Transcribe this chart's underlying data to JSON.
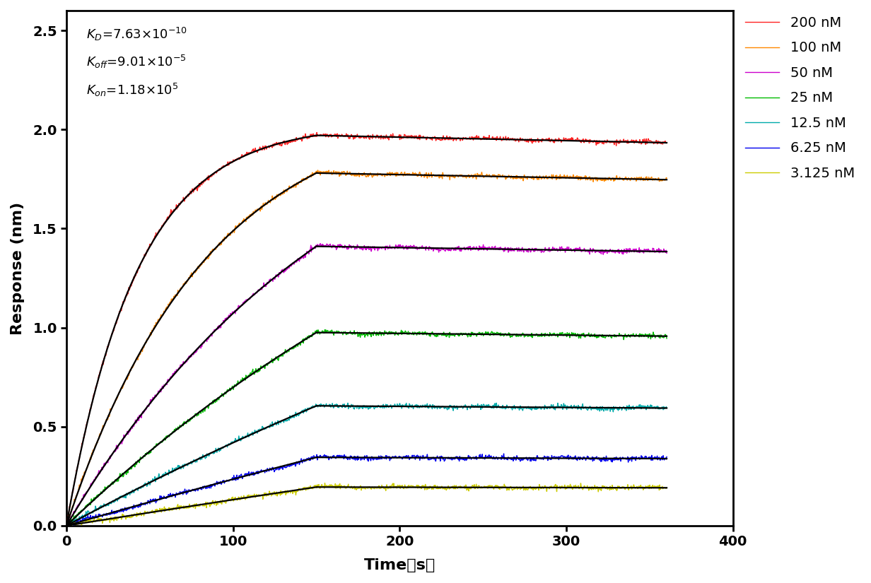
{
  "ylabel": "Response (nm)",
  "xlim": [
    0,
    400
  ],
  "ylim": [
    0.0,
    2.6
  ],
  "xticks": [
    0,
    100,
    200,
    300,
    400
  ],
  "yticks": [
    0.0,
    0.5,
    1.0,
    1.5,
    2.0,
    2.5
  ],
  "kon": 118000,
  "koff": 9.01e-05,
  "KD": 7.63e-10,
  "concentrations_nM": [
    200,
    100,
    50,
    25,
    12.5,
    6.25,
    3.125
  ],
  "plateau_values": [
    1.97,
    1.78,
    1.41,
    0.975,
    0.605,
    0.345,
    0.195
  ],
  "colors": [
    "#FF2222",
    "#FF8800",
    "#CC00CC",
    "#00BB00",
    "#00AAAA",
    "#0000EE",
    "#CCCC00"
  ],
  "labels": [
    "200 nM",
    "100 nM",
    "50 nM",
    "25 nM",
    "12.5 nM",
    "6.25 nM",
    "3.125 nM"
  ],
  "t_assoc_end": 150,
  "t_total": 360,
  "noise_scale": 0.006,
  "fit_color": "black",
  "fit_lw": 1.6,
  "data_lw": 1.0,
  "legend_fontsize": 14,
  "axis_fontsize": 16,
  "tick_fontsize": 14,
  "background_color": "#FFFFFF",
  "figwidth": 12.32,
  "figheight": 8.25,
  "dpi": 100
}
